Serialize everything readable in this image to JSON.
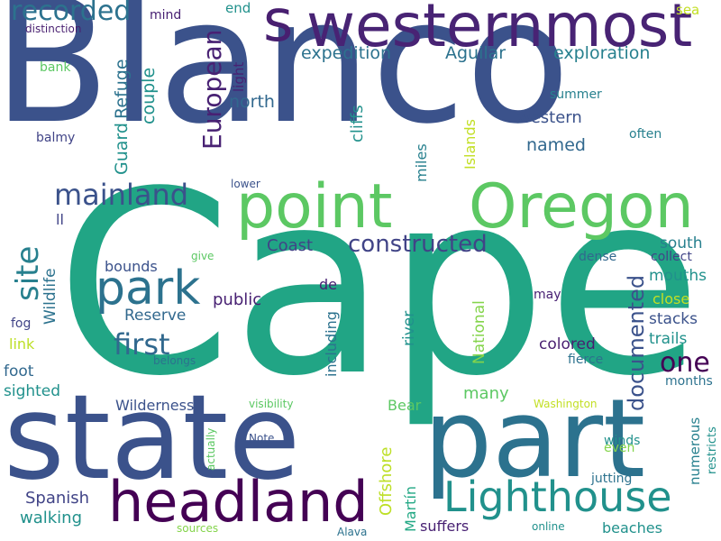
{
  "words": [
    {
      "text": "Blanco",
      "color": "#3b528b"
    },
    {
      "text": "Cape",
      "color": "#21a585"
    },
    {
      "text": "state",
      "color": "#3b528b"
    },
    {
      "text": "part",
      "color": "#2c728e"
    },
    {
      "text": "westernmost",
      "color": "#482374"
    },
    {
      "text": "point",
      "color": "#5cc863"
    },
    {
      "text": "Oregon",
      "color": "#5cc863"
    },
    {
      "text": "headland",
      "color": "#440154"
    },
    {
      "text": "Lighthouse",
      "color": "#21918c"
    },
    {
      "text": "park",
      "color": "#2c728e"
    },
    {
      "text": "s",
      "color": "#481f70"
    },
    {
      "text": "mainland",
      "color": "#3b528b"
    },
    {
      "text": "recorded",
      "color": "#2c728e"
    },
    {
      "text": "European",
      "color": "#482173"
    },
    {
      "text": "site",
      "color": "#27808e"
    },
    {
      "text": "first",
      "color": "#31688e"
    },
    {
      "text": "one",
      "color": "#440154"
    },
    {
      "text": "constructed",
      "color": "#414487"
    },
    {
      "text": "documented",
      "color": "#3b528b"
    },
    {
      "text": "expedition",
      "color": "#2c728e"
    },
    {
      "text": "exploration",
      "color": "#27808e"
    },
    {
      "text": "Aguilar",
      "color": "#2c728e"
    },
    {
      "text": "Coast",
      "color": "#414487"
    },
    {
      "text": "north",
      "color": "#31688e"
    },
    {
      "text": "western",
      "color": "#3b528b"
    },
    {
      "text": "named",
      "color": "#31688e"
    },
    {
      "text": "Refuge",
      "color": "#2c728e"
    },
    {
      "text": "couple",
      "color": "#21918c"
    },
    {
      "text": "Guard",
      "color": "#21918c"
    },
    {
      "text": "Wildlife",
      "color": "#2c728e"
    },
    {
      "text": "Offshore",
      "color": "#bddf26"
    },
    {
      "text": "National",
      "color": "#84d44b"
    },
    {
      "text": "Spanish",
      "color": "#414487"
    },
    {
      "text": "walking",
      "color": "#21918c"
    },
    {
      "text": "Wilderness",
      "color": "#3b528b"
    },
    {
      "text": "Reserve",
      "color": "#31688e"
    },
    {
      "text": "public",
      "color": "#482173"
    },
    {
      "text": "bounds",
      "color": "#3b528b"
    },
    {
      "text": "de",
      "color": "#482173"
    },
    {
      "text": "including",
      "color": "#2c728e"
    },
    {
      "text": "river",
      "color": "#21918c"
    },
    {
      "text": "many",
      "color": "#5cc863"
    },
    {
      "text": "cliffs",
      "color": "#21918c"
    },
    {
      "text": "Islands",
      "color": "#c2df23"
    },
    {
      "text": "miles",
      "color": "#27808e"
    },
    {
      "text": "Martín",
      "color": "#22a884"
    },
    {
      "text": "suffers",
      "color": "#482173"
    },
    {
      "text": "Bear",
      "color": "#5cc863"
    },
    {
      "text": "south",
      "color": "#27808e"
    },
    {
      "text": "mouths",
      "color": "#21918c"
    },
    {
      "text": "close",
      "color": "#c2df23"
    },
    {
      "text": "stacks",
      "color": "#3b528b"
    },
    {
      "text": "trails",
      "color": "#21918c"
    },
    {
      "text": "colored",
      "color": "#481f70"
    },
    {
      "text": "numerous",
      "color": "#27808e"
    },
    {
      "text": "restricts",
      "color": "#21918c"
    },
    {
      "text": "months",
      "color": "#2c728e"
    },
    {
      "text": "fierce",
      "color": "#2c728e"
    },
    {
      "text": "winds",
      "color": "#21918c"
    },
    {
      "text": "even",
      "color": "#84d44b"
    },
    {
      "text": "jutting",
      "color": "#2c728e"
    },
    {
      "text": "beaches",
      "color": "#21918c"
    },
    {
      "text": "online",
      "color": "#21918c"
    },
    {
      "text": "dense",
      "color": "#31688e"
    },
    {
      "text": "collect",
      "color": "#414487"
    },
    {
      "text": "may",
      "color": "#482173"
    },
    {
      "text": "summer",
      "color": "#27808e"
    },
    {
      "text": "often",
      "color": "#27808e"
    },
    {
      "text": "sea",
      "color": "#c2df23"
    },
    {
      "text": "end",
      "color": "#21918c"
    },
    {
      "text": "light",
      "color": "#482173"
    },
    {
      "text": "mind",
      "color": "#482173"
    },
    {
      "text": "distinction",
      "color": "#481f70"
    },
    {
      "text": "bank",
      "color": "#5cc863"
    },
    {
      "text": "balmy",
      "color": "#414487"
    },
    {
      "text": "ll",
      "color": "#414487"
    },
    {
      "text": "fog",
      "color": "#414487"
    },
    {
      "text": "link",
      "color": "#bddf26"
    },
    {
      "text": "foot",
      "color": "#31688e"
    },
    {
      "text": "sighted",
      "color": "#21918c"
    },
    {
      "text": "lower",
      "color": "#3b528b"
    },
    {
      "text": "give",
      "color": "#5cc863"
    },
    {
      "text": "belongs",
      "color": "#2c728e"
    },
    {
      "text": "visibility",
      "color": "#5cc863"
    },
    {
      "text": "actually",
      "color": "#5cc863"
    },
    {
      "text": "Note",
      "color": "#3b528b"
    },
    {
      "text": "sources",
      "color": "#84d44b"
    },
    {
      "text": "Alava",
      "color": "#2c728e"
    },
    {
      "text": "Washington",
      "color": "#c2df23"
    }
  ]
}
